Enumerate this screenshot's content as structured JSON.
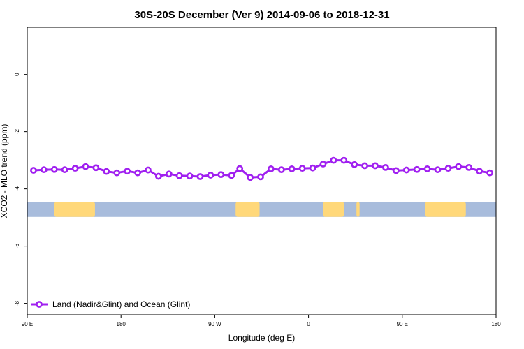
{
  "chart_data": {
    "type": "line",
    "title": "30S-20S December (Ver 9)   2014-09-06 to 2018-12-31",
    "xlabel": "Longitude (deg E)",
    "ylabel": "XCO2 - MLO trend (ppm)",
    "x_ticks": [
      {
        "value": 90,
        "label": "90 E"
      },
      {
        "value": 180,
        "label": "180"
      },
      {
        "value": 270,
        "label": "90 W"
      },
      {
        "value": 360,
        "label": "0"
      },
      {
        "value": 450,
        "label": "90 E"
      },
      {
        "value": 540,
        "label": "180"
      }
    ],
    "y_ticks": [
      {
        "value": 0,
        "label": "0"
      },
      {
        "value": -2,
        "label": "-2"
      },
      {
        "value": -4,
        "label": "-4"
      },
      {
        "value": -6,
        "label": "-6"
      },
      {
        "value": -8,
        "label": "-8"
      }
    ],
    "xlim": [
      90,
      540
    ],
    "ylim": [
      -8.4,
      1.65
    ],
    "grid": false,
    "legend_position": "bottom-left",
    "colors": {
      "series": "#a020f0",
      "ocean": "#a8bcdc",
      "land": "#ffd87a",
      "axis": "#000000"
    },
    "land_mask": {
      "y_range": [
        -4.45,
        -4.98
      ],
      "land_segments": [
        [
          116,
          155
        ],
        [
          290,
          313
        ],
        [
          374,
          394
        ],
        [
          406,
          409
        ],
        [
          472,
          511
        ]
      ]
    },
    "series": [
      {
        "name": "Land (Nadir&Glint) and Ocean (Glint)",
        "x": [
          96,
          106,
          116,
          126,
          136,
          146,
          156,
          166,
          176,
          186,
          196,
          206,
          216,
          226,
          236,
          246,
          256,
          266,
          276,
          286,
          294,
          304,
          314,
          324,
          334,
          344,
          354,
          364,
          374,
          384,
          394,
          404,
          414,
          424,
          434,
          444,
          454,
          464,
          474,
          484,
          494,
          504,
          514,
          524,
          534
        ],
        "values": [
          -3.35,
          -3.33,
          -3.32,
          -3.33,
          -3.28,
          -3.22,
          -3.26,
          -3.39,
          -3.44,
          -3.38,
          -3.44,
          -3.34,
          -3.56,
          -3.48,
          -3.54,
          -3.55,
          -3.57,
          -3.52,
          -3.5,
          -3.53,
          -3.29,
          -3.6,
          -3.58,
          -3.3,
          -3.33,
          -3.3,
          -3.28,
          -3.27,
          -3.13,
          -3.0,
          -3.0,
          -3.15,
          -3.19,
          -3.19,
          -3.25,
          -3.36,
          -3.34,
          -3.32,
          -3.3,
          -3.33,
          -3.28,
          -3.22,
          -3.25,
          -3.38,
          -3.44
        ]
      }
    ]
  }
}
